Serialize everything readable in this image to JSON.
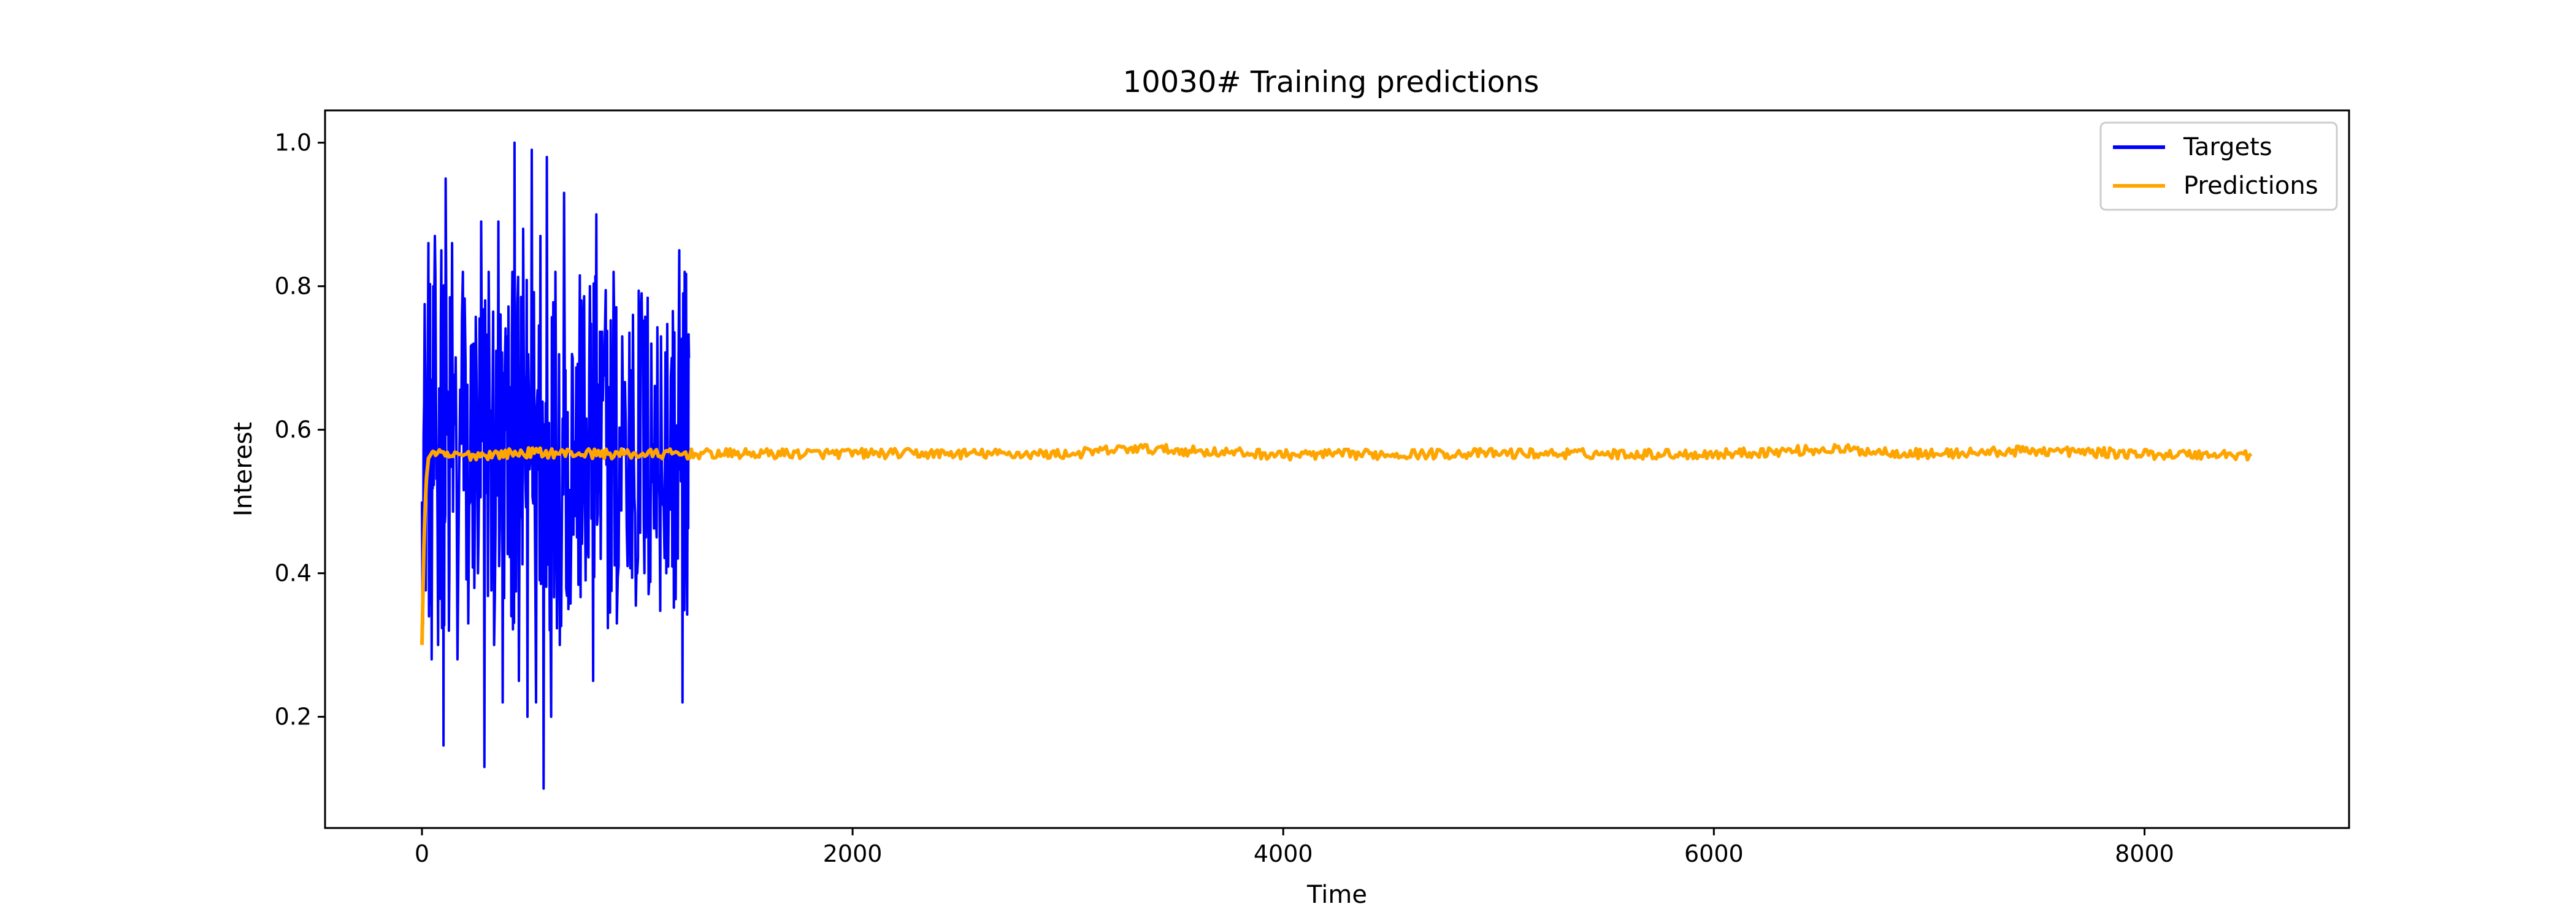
{
  "chart_data": {
    "type": "line",
    "title": "10030# Training predictions",
    "xlabel": "Time",
    "ylabel": "Interest",
    "xlim": [
      -450,
      8950
    ],
    "ylim": [
      0.045,
      1.045
    ],
    "x_ticks": [
      0,
      2000,
      4000,
      6000,
      8000
    ],
    "x_tick_labels": [
      "0",
      "2000",
      "4000",
      "6000",
      "8000"
    ],
    "y_ticks": [
      0.2,
      0.4,
      0.6,
      0.8,
      1.0
    ],
    "y_tick_labels": [
      "0.2",
      "0.4",
      "0.6",
      "0.8",
      "1.0"
    ],
    "grid": false,
    "legend_position": "top-right",
    "series": [
      {
        "name": "Targets",
        "color": "#0000ff",
        "x_range": [
          0,
          1240
        ],
        "summary": {
          "min": 0.1,
          "max": 1.0,
          "center": 0.57
        },
        "points": [
          [
            0,
            0.5
          ],
          [
            15,
            0.68
          ],
          [
            30,
            0.86
          ],
          [
            45,
            0.28
          ],
          [
            60,
            0.87
          ],
          [
            75,
            0.3
          ],
          [
            90,
            0.85
          ],
          [
            100,
            0.16
          ],
          [
            110,
            0.95
          ],
          [
            125,
            0.32
          ],
          [
            140,
            0.86
          ],
          [
            165,
            0.28
          ],
          [
            190,
            0.82
          ],
          [
            215,
            0.33
          ],
          [
            240,
            0.72
          ],
          [
            260,
            0.4
          ],
          [
            275,
            0.89
          ],
          [
            290,
            0.13
          ],
          [
            310,
            0.82
          ],
          [
            335,
            0.3
          ],
          [
            355,
            0.89
          ],
          [
            375,
            0.22
          ],
          [
            395,
            0.73
          ],
          [
            415,
            0.34
          ],
          [
            430,
            1.0
          ],
          [
            450,
            0.25
          ],
          [
            470,
            0.88
          ],
          [
            490,
            0.2
          ],
          [
            510,
            0.99
          ],
          [
            530,
            0.22
          ],
          [
            550,
            0.87
          ],
          [
            565,
            0.1
          ],
          [
            580,
            0.98
          ],
          [
            600,
            0.2
          ],
          [
            620,
            0.82
          ],
          [
            640,
            0.3
          ],
          [
            660,
            0.93
          ],
          [
            680,
            0.35
          ],
          [
            700,
            0.7
          ],
          [
            720,
            0.45
          ],
          [
            740,
            0.78
          ],
          [
            760,
            0.39
          ],
          [
            780,
            0.8
          ],
          [
            795,
            0.25
          ],
          [
            810,
            0.9
          ],
          [
            830,
            0.42
          ],
          [
            850,
            0.74
          ],
          [
            870,
            0.36
          ],
          [
            890,
            0.82
          ],
          [
            905,
            0.33
          ],
          [
            930,
            0.73
          ],
          [
            955,
            0.41
          ],
          [
            980,
            0.76
          ],
          [
            1000,
            0.4
          ],
          [
            1020,
            0.79
          ],
          [
            1040,
            0.45
          ],
          [
            1065,
            0.72
          ],
          [
            1090,
            0.45
          ],
          [
            1110,
            0.73
          ],
          [
            1135,
            0.4
          ],
          [
            1160,
            0.7
          ],
          [
            1175,
            0.46
          ],
          [
            1195,
            0.85
          ],
          [
            1210,
            0.22
          ],
          [
            1220,
            0.82
          ],
          [
            1230,
            0.39
          ],
          [
            1240,
            0.7
          ]
        ]
      },
      {
        "name": "Predictions",
        "color": "#ffa500",
        "x_range": [
          0,
          8500
        ],
        "summary": {
          "start": 0.3,
          "steady_state": 0.567
        },
        "points": [
          [
            0,
            0.3
          ],
          [
            10,
            0.45
          ],
          [
            20,
            0.53
          ],
          [
            30,
            0.56
          ],
          [
            50,
            0.57
          ],
          [
            100,
            0.563
          ],
          [
            500,
            0.568
          ],
          [
            1000,
            0.566
          ],
          [
            2000,
            0.567
          ],
          [
            3000,
            0.566
          ],
          [
            3300,
            0.574
          ],
          [
            4000,
            0.565
          ],
          [
            5000,
            0.567
          ],
          [
            6000,
            0.566
          ],
          [
            6550,
            0.573
          ],
          [
            7000,
            0.566
          ],
          [
            7500,
            0.571
          ],
          [
            8000,
            0.566
          ],
          [
            8500,
            0.565
          ]
        ]
      }
    ]
  },
  "style": {
    "background": "#ffffff",
    "axes_color": "#000000"
  }
}
